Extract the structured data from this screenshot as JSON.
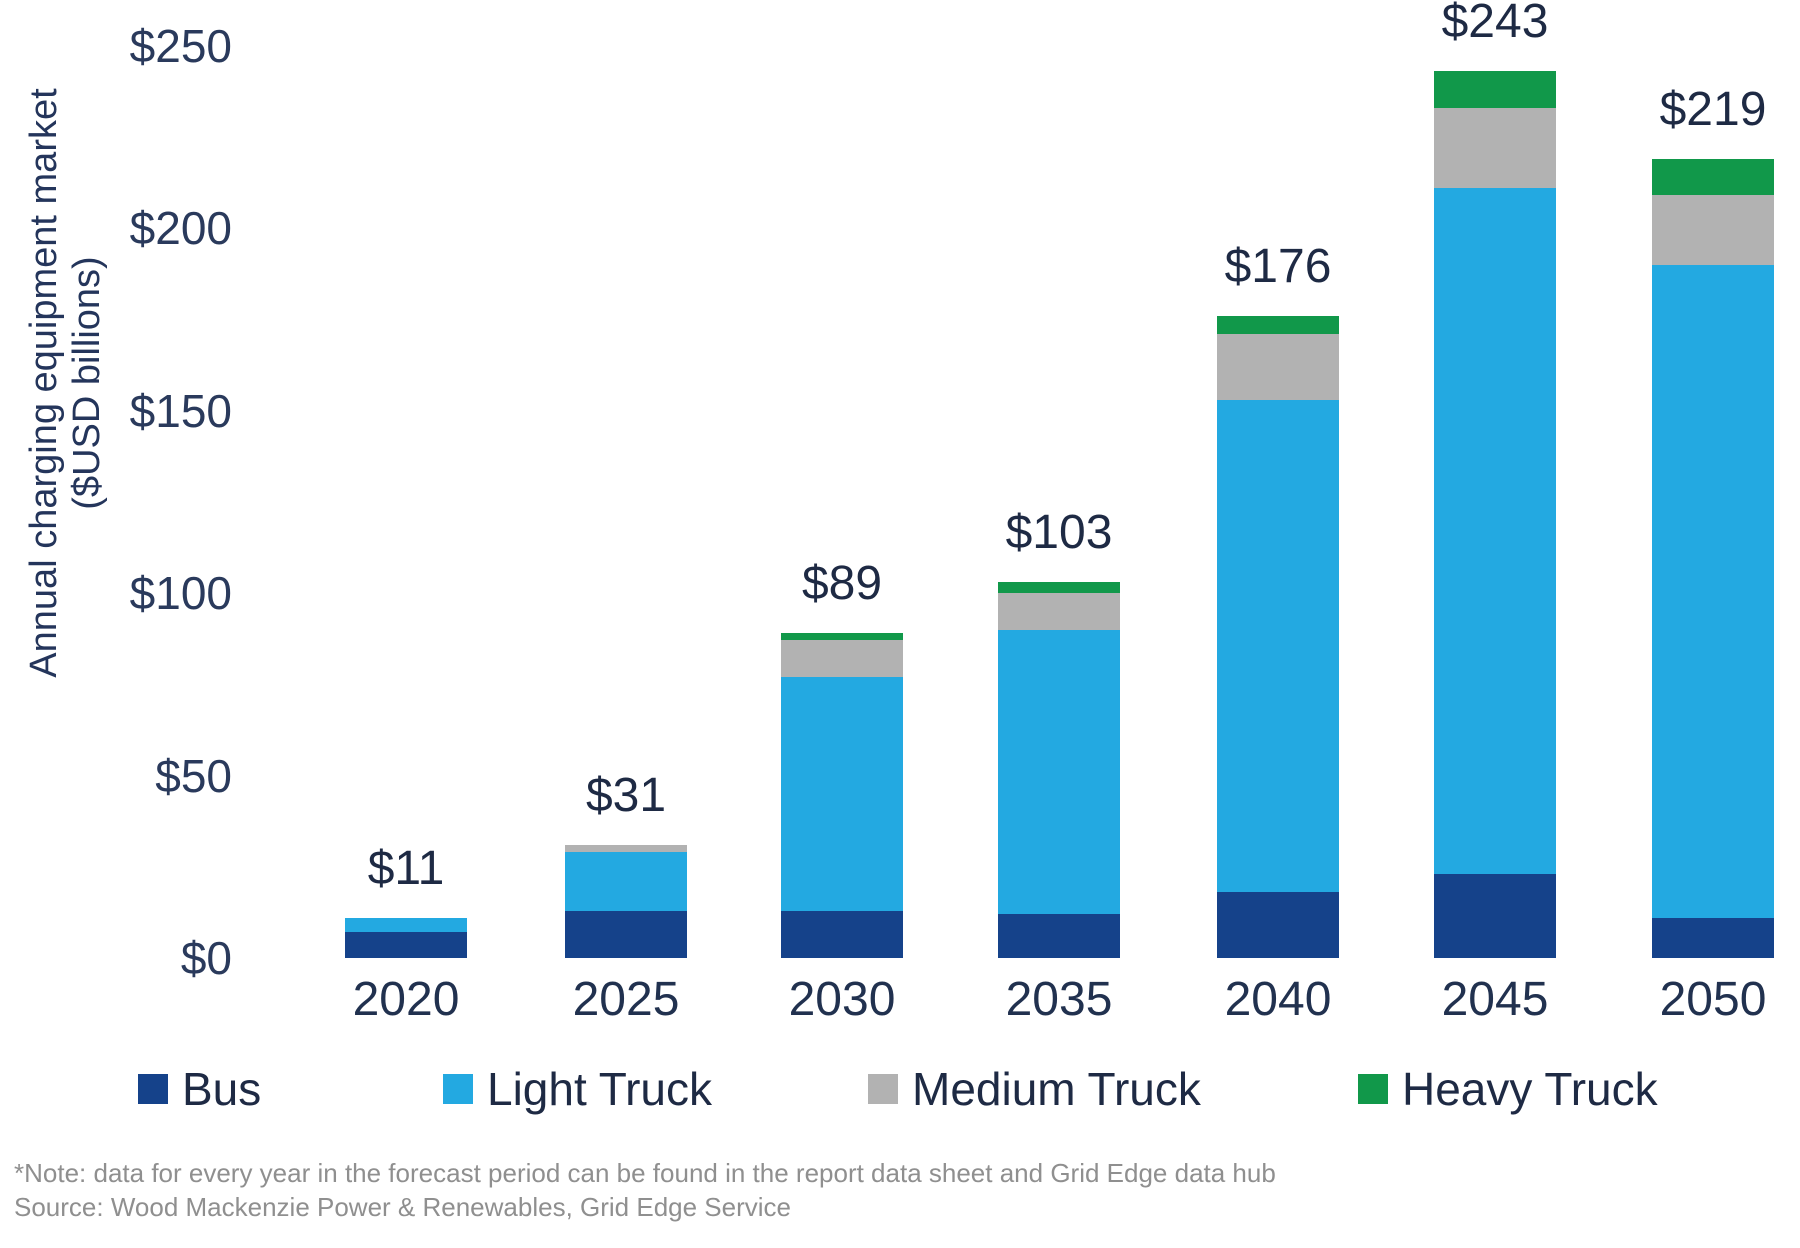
{
  "y_axis": {
    "title_line1": "Annual charging equipment market",
    "title_line2": "($USD billions)"
  },
  "footnote": {
    "line1": "*Note: data for every year in the forecast period can be found in the report data sheet and Grid Edge data hub",
    "line2": "Source: Wood Mackenzie Power & Renewables, Grid Edge Service"
  },
  "chart_data": {
    "type": "bar",
    "stacked": true,
    "title": "",
    "xlabel": "",
    "ylabel": "Annual charging equipment market ($USD billions)",
    "categories": [
      "2020",
      "2025",
      "2030",
      "2035",
      "2040",
      "2045",
      "2050"
    ],
    "series": [
      {
        "name": "Bus",
        "color": "#15428A",
        "values": [
          7,
          13,
          13,
          12,
          18,
          23,
          11
        ]
      },
      {
        "name": "Light Truck",
        "color": "#23A9E1",
        "values": [
          4,
          16,
          64,
          78,
          135,
          188,
          179
        ]
      },
      {
        "name": "Medium Truck",
        "color": "#B2B2B2",
        "values": [
          0,
          2,
          10,
          10,
          18,
          22,
          19
        ]
      },
      {
        "name": "Heavy Truck",
        "color": "#11984A",
        "values": [
          0,
          0,
          2,
          3,
          5,
          10,
          10
        ]
      }
    ],
    "totals": [
      11,
      31,
      89,
      103,
      176,
      243,
      219
    ],
    "total_labels": [
      "$11",
      "$31",
      "$89",
      "$103",
      "$176",
      "$243",
      "$219"
    ],
    "yticks": [
      0,
      50,
      100,
      150,
      200,
      250
    ],
    "ytick_labels": [
      "$0",
      "$50",
      "$100",
      "$150",
      "$200",
      "$250"
    ],
    "ylim": [
      0,
      260
    ],
    "grid": false,
    "legend_position": "bottom"
  }
}
